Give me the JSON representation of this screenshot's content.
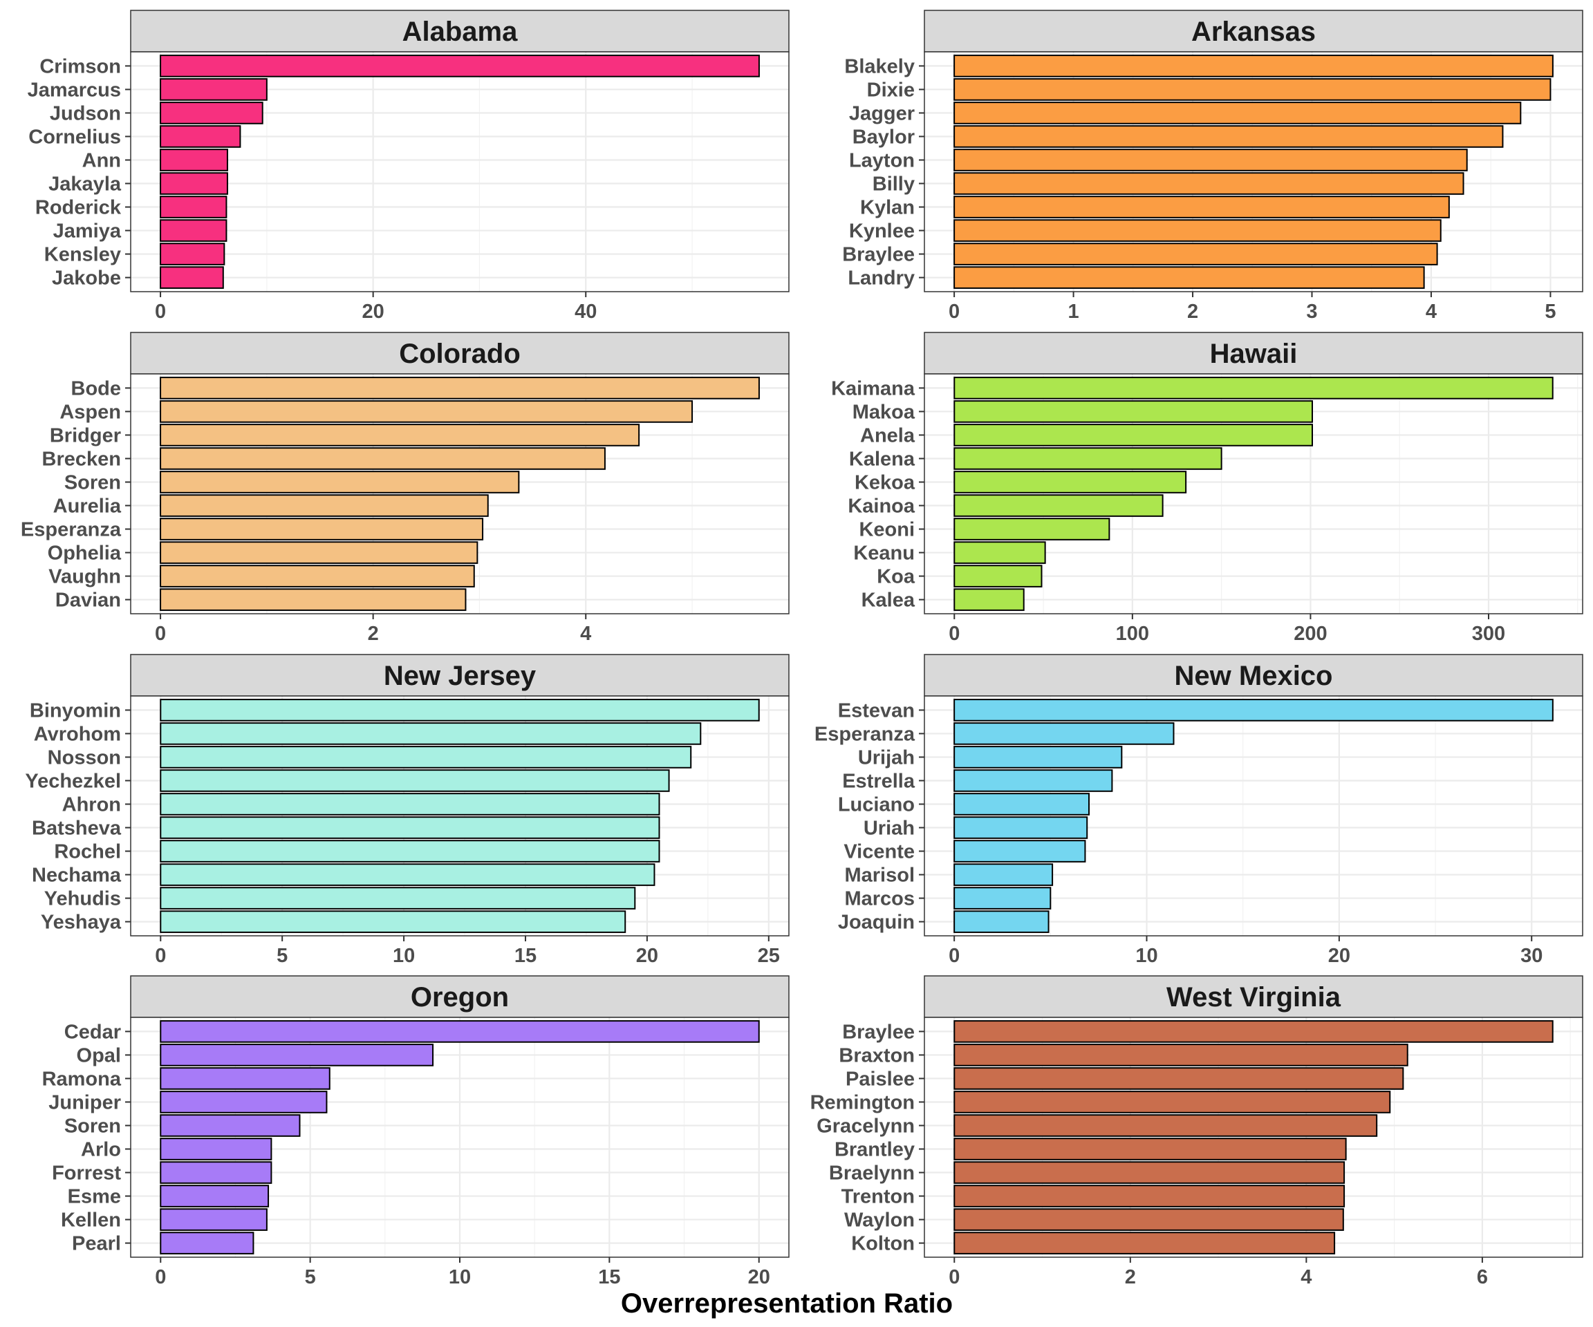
{
  "xlabel": "Overrepresentation Ratio",
  "chart_data": [
    {
      "type": "bar",
      "title": "Alabama",
      "color": "#F7307F",
      "categories": [
        "Crimson",
        "Jamarcus",
        "Judson",
        "Cornelius",
        "Ann",
        "Jakayla",
        "Roderick",
        "Jamiya",
        "Kensley",
        "Jakobe"
      ],
      "values": [
        56.3,
        10.0,
        9.6,
        7.5,
        6.3,
        6.3,
        6.2,
        6.2,
        6.0,
        5.9
      ],
      "xlim": [
        -2.8,
        59.1
      ],
      "xticks": [
        0,
        20,
        40
      ],
      "xtick_labels": [
        "0",
        "20",
        "40"
      ],
      "xlabel": "Overrepresentation Ratio"
    },
    {
      "type": "bar",
      "title": "Arkansas",
      "color": "#FB9D43",
      "categories": [
        "Blakely",
        "Dixie",
        "Jagger",
        "Baylor",
        "Layton",
        "Billy",
        "Kylan",
        "Kynlee",
        "Braylee",
        "Landry"
      ],
      "values": [
        5.02,
        5.0,
        4.75,
        4.6,
        4.3,
        4.27,
        4.15,
        4.08,
        4.05,
        3.94
      ],
      "xlim": [
        -0.25,
        5.27
      ],
      "xticks": [
        0,
        1,
        2,
        3,
        4,
        5
      ],
      "xtick_labels": [
        "0",
        "1",
        "2",
        "3",
        "4",
        "5"
      ],
      "xlabel": "Overrepresentation Ratio"
    },
    {
      "type": "bar",
      "title": "Colorado",
      "color": "#F4C183",
      "categories": [
        "Bode",
        "Aspen",
        "Bridger",
        "Brecken",
        "Soren",
        "Aurelia",
        "Esperanza",
        "Ophelia",
        "Vaughn",
        "Davian"
      ],
      "values": [
        5.63,
        5.0,
        4.5,
        4.18,
        3.37,
        3.08,
        3.03,
        2.98,
        2.95,
        2.87
      ],
      "xlim": [
        -0.28,
        5.91
      ],
      "xticks": [
        0,
        2,
        4
      ],
      "xtick_labels": [
        "0",
        "2",
        "4"
      ],
      "xlabel": "Overrepresentation Ratio"
    },
    {
      "type": "bar",
      "title": "Hawaii",
      "color": "#ACE64E",
      "categories": [
        "Kaimana",
        "Makoa",
        "Anela",
        "Kalena",
        "Kekoa",
        "Kainoa",
        "Keoni",
        "Keanu",
        "Koa",
        "Kalea"
      ],
      "values": [
        336,
        201,
        201,
        150,
        130,
        117,
        87,
        51,
        49,
        39
      ],
      "xlim": [
        -16.8,
        352.8
      ],
      "xticks": [
        0,
        100,
        200,
        300
      ],
      "xtick_labels": [
        "0",
        "100",
        "200",
        "300"
      ],
      "xlabel": "Overrepresentation Ratio"
    },
    {
      "type": "bar",
      "title": "New Jersey",
      "color": "#A8F0E2",
      "categories": [
        "Binyomin",
        "Avrohom",
        "Nosson",
        "Yechezkel",
        "Ahron",
        "Batsheva",
        "Rochel",
        "Nechama",
        "Yehudis",
        "Yeshaya"
      ],
      "values": [
        24.6,
        22.2,
        21.8,
        20.9,
        20.5,
        20.5,
        20.5,
        20.3,
        19.5,
        19.1
      ],
      "xlim": [
        -1.23,
        25.83
      ],
      "xticks": [
        0,
        5,
        10,
        15,
        20,
        25
      ],
      "xtick_labels": [
        "0",
        "5",
        "10",
        "15",
        "20",
        "25"
      ],
      "xlabel": "Overrepresentation Ratio"
    },
    {
      "type": "bar",
      "title": "New Mexico",
      "color": "#74D6F0",
      "categories": [
        "Estevan",
        "Esperanza",
        "Urijah",
        "Estrella",
        "Luciano",
        "Uriah",
        "Vicente",
        "Marisol",
        "Marcos",
        "Joaquin"
      ],
      "values": [
        31.1,
        11.4,
        8.7,
        8.2,
        7.0,
        6.9,
        6.8,
        5.1,
        5.0,
        4.9
      ],
      "xlim": [
        -1.55,
        32.65
      ],
      "xticks": [
        0,
        10,
        20,
        30
      ],
      "xtick_labels": [
        "0",
        "10",
        "20",
        "30"
      ],
      "xlabel": "Overrepresentation Ratio"
    },
    {
      "type": "bar",
      "title": "Oregon",
      "color": "#A77BF7",
      "categories": [
        "Cedar",
        "Opal",
        "Ramona",
        "Juniper",
        "Soren",
        "Arlo",
        "Forrest",
        "Esme",
        "Kellen",
        "Pearl"
      ],
      "values": [
        20.0,
        9.1,
        5.65,
        5.55,
        4.65,
        3.7,
        3.7,
        3.6,
        3.55,
        3.1
      ],
      "xlim": [
        -1.0,
        21.0
      ],
      "xticks": [
        0,
        5,
        10,
        15,
        20
      ],
      "xtick_labels": [
        "0",
        "5",
        "10",
        "15",
        "20"
      ],
      "xlabel": "Overrepresentation Ratio"
    },
    {
      "type": "bar",
      "title": "West Virginia",
      "color": "#C96E4D",
      "categories": [
        "Braylee",
        "Braxton",
        "Paislee",
        "Remington",
        "Gracelynn",
        "Brantley",
        "Braelynn",
        "Trenton",
        "Waylon",
        "Kolton"
      ],
      "values": [
        6.8,
        5.15,
        5.1,
        4.95,
        4.8,
        4.45,
        4.43,
        4.43,
        4.42,
        4.32
      ],
      "xlim": [
        -0.34,
        7.14
      ],
      "xticks": [
        0,
        2,
        4,
        6
      ],
      "xtick_labels": [
        "0",
        "2",
        "4",
        "6"
      ],
      "xlabel": "Overrepresentation Ratio"
    }
  ]
}
